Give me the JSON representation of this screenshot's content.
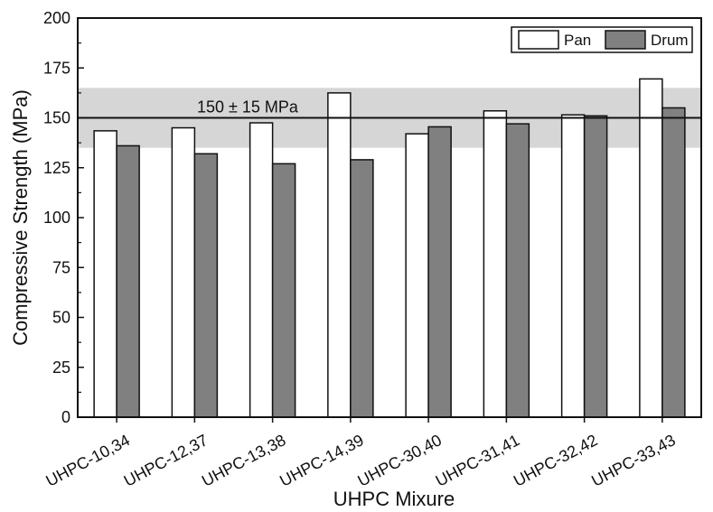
{
  "chart_data": {
    "type": "bar",
    "title": "",
    "xlabel": "UHPC Mixure",
    "ylabel": "Compressive Strength (MPa)",
    "ylim": [
      0,
      200
    ],
    "yticks": [
      0,
      25,
      50,
      75,
      100,
      125,
      150,
      175,
      200
    ],
    "categories": [
      "UHPC-10,34",
      "UHPC-12,37",
      "UHPC-13,38",
      "UHPC-14,39",
      "UHPC-30,40",
      "UHPC-31,41",
      "UHPC-32,42",
      "UHPC-33,43"
    ],
    "series": [
      {
        "name": "Pan",
        "color": "#ffffff",
        "values": [
          143.5,
          145,
          147.5,
          162.5,
          142,
          153.5,
          151.5,
          169.5
        ]
      },
      {
        "name": "Drum",
        "color": "#808080",
        "values": [
          136,
          132,
          127,
          129,
          145.5,
          147,
          151,
          155
        ]
      }
    ],
    "reference": {
      "label": "150 ± 15 MPa",
      "value": 150,
      "band": [
        135,
        165
      ],
      "band_color": "#d6d6d6"
    },
    "legend": "top-right",
    "grid": false
  }
}
